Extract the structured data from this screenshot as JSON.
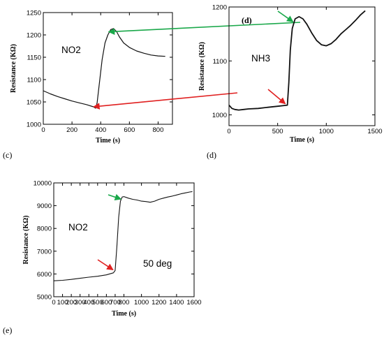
{
  "panel_labels": {
    "c": "(c)",
    "d": "(d)",
    "e": "(e)"
  },
  "chart_data": [
    {
      "id": "c",
      "type": "line",
      "title": "",
      "xlabel": "Time (s)",
      "ylabel": "Resistance (KΩ)",
      "xlim": [
        0,
        900
      ],
      "ylim": [
        1000,
        1250
      ],
      "xticks": [
        "0",
        "200",
        "400",
        "600",
        "800"
      ],
      "yticks": [
        "1000",
        "1050",
        "1100",
        "1150",
        "1200",
        "1250"
      ],
      "annotations": [
        {
          "text": "NO2"
        }
      ],
      "inner_label": "",
      "arrows": [
        {
          "color": "#e02020",
          "points_to": [
            365,
            1036
          ]
        },
        {
          "color": "#1aa84a",
          "points_to": [
            470,
            1210
          ]
        }
      ],
      "series": [
        {
          "x": [
            0,
            50,
            100,
            150,
            200,
            250,
            300,
            350,
            365,
            375,
            390,
            410,
            430,
            450,
            470,
            490,
            510,
            530,
            560,
            600,
            650,
            700,
            750,
            800,
            850
          ],
          "y": [
            1075,
            1068,
            1062,
            1057,
            1052,
            1048,
            1044,
            1039,
            1036,
            1048,
            1090,
            1145,
            1182,
            1200,
            1212,
            1214,
            1208,
            1196,
            1182,
            1172,
            1164,
            1159,
            1155,
            1153,
            1152
          ]
        }
      ]
    },
    {
      "id": "d",
      "type": "line",
      "title": "",
      "xlabel": "Time (s)",
      "ylabel": "Resistance (KΩ)",
      "xlim": [
        0,
        1500
      ],
      "ylim": [
        980,
        1200
      ],
      "xticks": [
        "0",
        "500",
        "1000",
        "1500"
      ],
      "yticks": [
        "1000",
        "1100",
        "1200"
      ],
      "annotations": [
        {
          "text": "NH3"
        }
      ],
      "inner_label": "(d)",
      "arrows": [
        {
          "color": "#e02020",
          "points_to": [
            600,
            1018
          ]
        },
        {
          "color": "#1aa84a",
          "points_to": [
            680,
            1175
          ]
        }
      ],
      "series": [
        {
          "x": [
            0,
            30,
            60,
            100,
            150,
            200,
            300,
            400,
            500,
            600,
            615,
            630,
            650,
            680,
            720,
            760,
            800,
            850,
            900,
            950,
            1000,
            1050,
            1100,
            1150,
            1200,
            1250,
            1300,
            1350,
            1400
          ],
          "y": [
            1018,
            1012,
            1010,
            1009,
            1010,
            1011,
            1012,
            1014,
            1016,
            1018,
            1060,
            1120,
            1160,
            1178,
            1182,
            1178,
            1168,
            1152,
            1138,
            1130,
            1128,
            1132,
            1140,
            1150,
            1158,
            1166,
            1175,
            1185,
            1193
          ]
        }
      ]
    },
    {
      "id": "e",
      "type": "line",
      "title": "",
      "xlabel": "Time (s)",
      "ylabel": "Resistance (KΩ)",
      "xlim": [
        0,
        1600
      ],
      "ylim": [
        5000,
        10000
      ],
      "xticks": [
        "0",
        "100",
        "200",
        "300",
        "400",
        "500",
        "600",
        "700",
        "800",
        "1000",
        "1200",
        "1400",
        "1600"
      ],
      "yticks": [
        "5000",
        "6000",
        "7000",
        "8000",
        "9000",
        "10000"
      ],
      "annotations": [
        {
          "text": "NO2"
        },
        {
          "text": "50 deg"
        }
      ],
      "inner_label": "",
      "arrows": [
        {
          "color": "#e02020",
          "points_to": [
            700,
            6120
          ]
        },
        {
          "color": "#1aa84a",
          "points_to": [
            790,
            9350
          ]
        }
      ],
      "series": [
        {
          "x": [
            0,
            100,
            200,
            300,
            400,
            500,
            600,
            680,
            700,
            720,
            740,
            760,
            780,
            800,
            850,
            900,
            950,
            1000,
            1050,
            1100,
            1150,
            1200,
            1250,
            1300,
            1350,
            1400,
            1450,
            1500,
            1550,
            1580
          ],
          "y": [
            5700,
            5720,
            5760,
            5810,
            5860,
            5900,
            5960,
            6050,
            6150,
            7200,
            8500,
            9200,
            9380,
            9400,
            9330,
            9280,
            9250,
            9200,
            9180,
            9150,
            9200,
            9280,
            9330,
            9380,
            9420,
            9470,
            9520,
            9560,
            9600,
            9620
          ]
        }
      ]
    }
  ]
}
